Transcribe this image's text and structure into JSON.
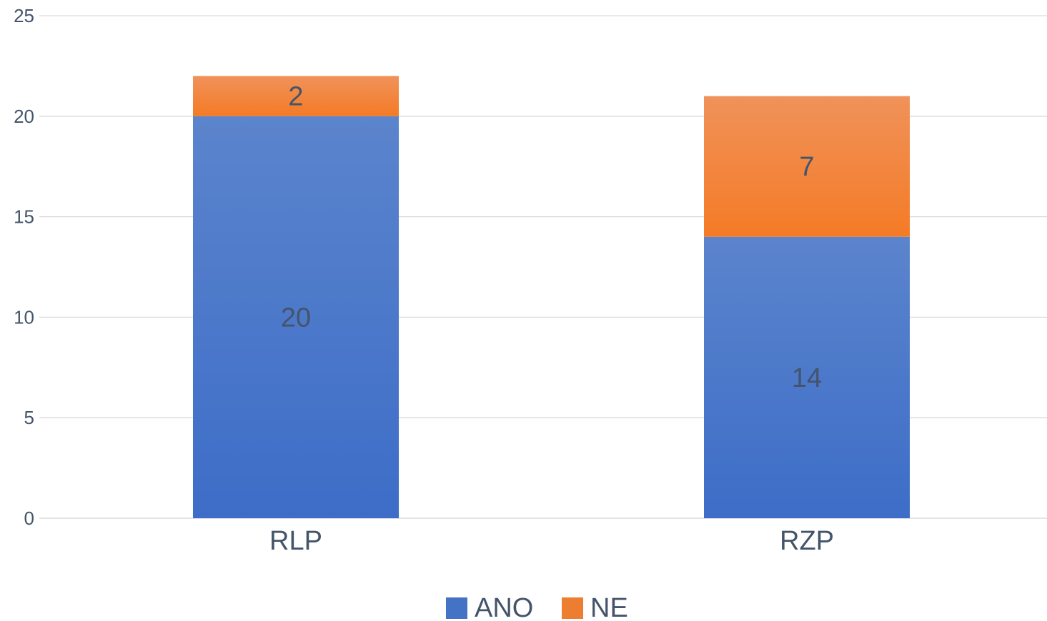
{
  "chart_data": {
    "type": "bar",
    "stacked": true,
    "categories": [
      "RLP",
      "RZP"
    ],
    "series": [
      {
        "name": "ANO",
        "values": [
          20,
          14
        ],
        "color": "#4472c4"
      },
      {
        "name": "NE",
        "values": [
          2,
          7
        ],
        "color": "#ed7d31"
      }
    ],
    "ylim": [
      0,
      25
    ],
    "yticks": [
      0,
      5,
      10,
      15,
      20,
      25
    ],
    "grid": true,
    "legend_position": "bottom",
    "data_labels": true
  }
}
